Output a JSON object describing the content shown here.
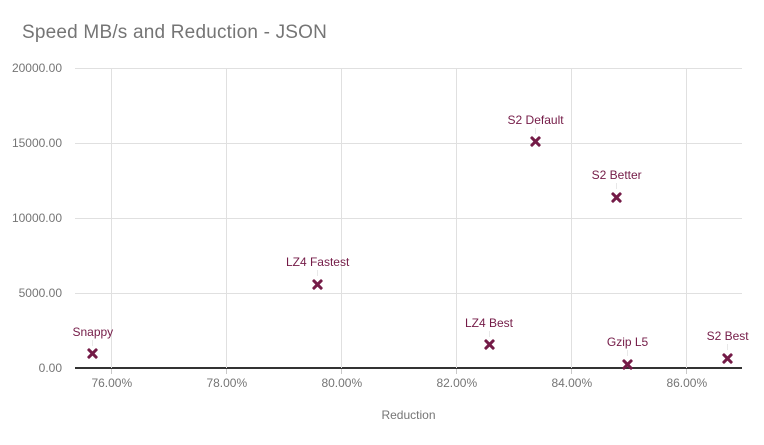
{
  "chart_data": {
    "type": "scatter",
    "title": "Speed MB/s and Reduction - JSON",
    "xlabel": "Reduction",
    "ylabel": "",
    "xlim": [
      75.36,
      86.96
    ],
    "ylim": [
      0,
      20000
    ],
    "x_ticks": [
      76,
      78,
      80,
      82,
      84,
      86
    ],
    "x_tick_labels": [
      "76.00%",
      "78.00%",
      "80.00%",
      "82.00%",
      "84.00%",
      "86.00%"
    ],
    "y_ticks": [
      20000,
      15000,
      10000,
      5000,
      0
    ],
    "y_tick_labels": [
      "20000.00",
      "15000.00",
      "10000.00",
      "5000.00",
      "0.00"
    ],
    "grid": true,
    "legend_position": "none",
    "marker": "x",
    "series": [
      {
        "name": "Speed MB/s",
        "points": [
          {
            "label": "Snappy",
            "x": 75.67,
            "y": 950
          },
          {
            "label": "LZ4 Fastest",
            "x": 79.58,
            "y": 5600
          },
          {
            "label": "LZ4 Best",
            "x": 82.56,
            "y": 1550
          },
          {
            "label": "S2 Default",
            "x": 83.37,
            "y": 15100
          },
          {
            "label": "S2 Better",
            "x": 84.78,
            "y": 11400
          },
          {
            "label": "Gzip L5",
            "x": 84.97,
            "y": 250
          },
          {
            "label": "S2 Best",
            "x": 86.71,
            "y": 650
          }
        ]
      }
    ],
    "colors": {
      "point": "#741b47",
      "point_label": "#741b47",
      "title_text": "#757575",
      "axis_text": "#757575",
      "grid": "#e0e0e0",
      "axis_line": "#333333",
      "background": "#ffffff"
    }
  }
}
